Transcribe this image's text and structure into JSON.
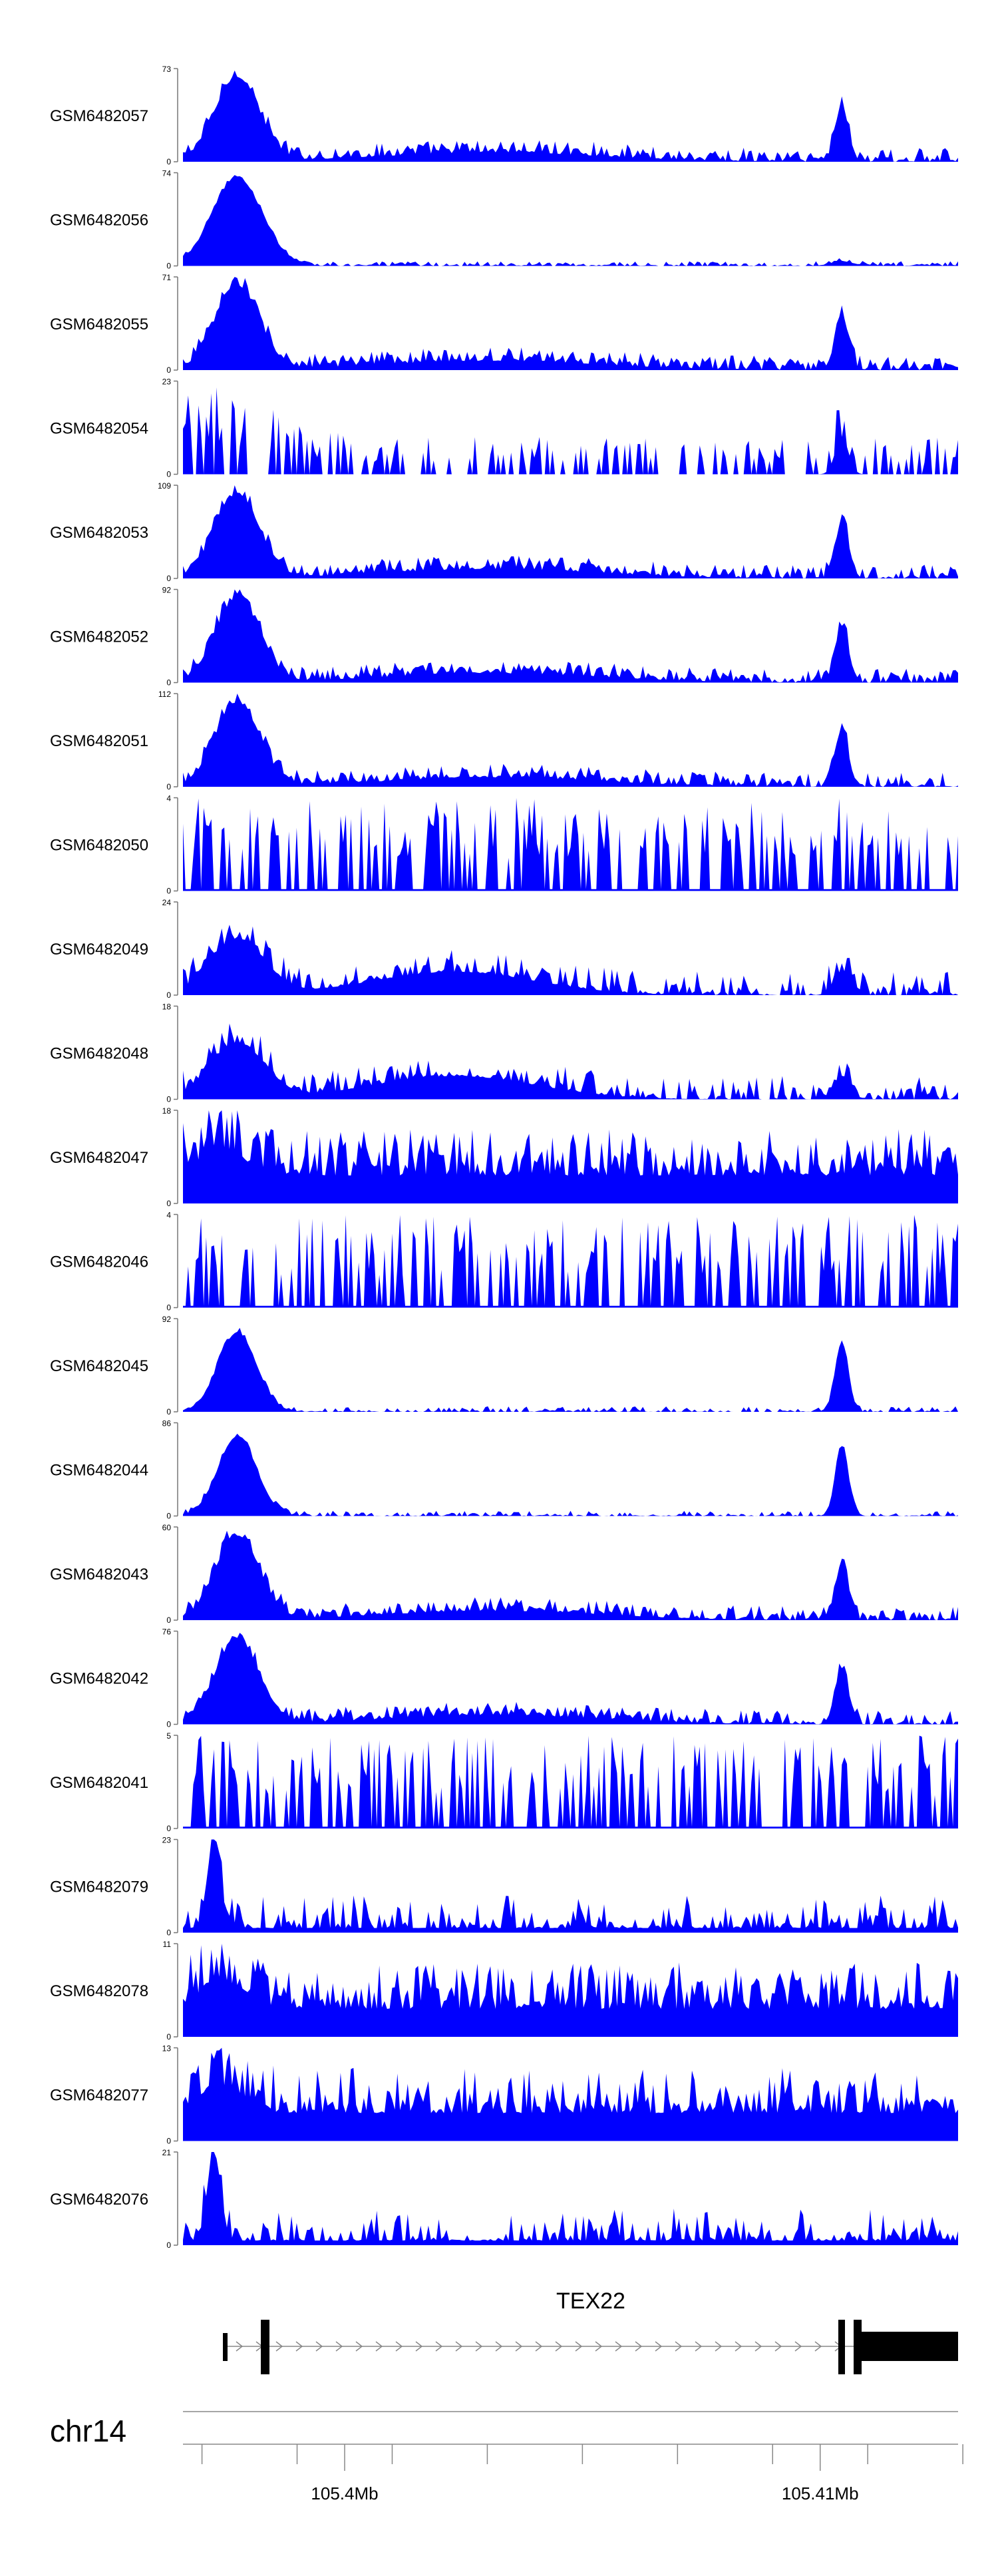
{
  "chart_data": {
    "type": "area",
    "chromosome": "chr14",
    "gene": {
      "name": "TEX22"
    },
    "x_axis": {
      "range_mb": [
        105.3966,
        105.4129
      ],
      "ticks_mb": [
        105.397,
        105.399,
        105.401,
        105.403,
        105.405,
        105.407,
        105.409,
        105.411,
        105.413
      ],
      "tick_labels": [
        {
          "mb": 105.4,
          "label": "105.4Mb"
        },
        {
          "mb": 105.41,
          "label": "105.41Mb"
        }
      ]
    },
    "tracks": [
      {
        "name": "GSM6482057",
        "max": 73,
        "label": "73",
        "shape": "strongA"
      },
      {
        "name": "GSM6482056",
        "max": 74,
        "label": "74",
        "shape": "earlyOnly"
      },
      {
        "name": "GSM6482055",
        "max": 71,
        "label": "71",
        "shape": "strongA"
      },
      {
        "name": "GSM6482054",
        "max": 23,
        "label": "23",
        "shape": "sparse"
      },
      {
        "name": "GSM6482053",
        "max": 109,
        "label": "109",
        "shape": "strongA"
      },
      {
        "name": "GSM6482052",
        "max": 92,
        "label": "92",
        "shape": "strongA"
      },
      {
        "name": "GSM6482051",
        "max": 112,
        "label": "112",
        "shape": "strongA"
      },
      {
        "name": "GSM6482050",
        "max": 4,
        "label": "4",
        "shape": "noise"
      },
      {
        "name": "GSM6482049",
        "max": 24,
        "label": "24",
        "shape": "moderate"
      },
      {
        "name": "GSM6482048",
        "max": 18,
        "label": "18",
        "shape": "moderate"
      },
      {
        "name": "GSM6482047",
        "max": 18,
        "label": "18",
        "shape": "dense"
      },
      {
        "name": "GSM6482046",
        "max": 4,
        "label": "4",
        "shape": "noise"
      },
      {
        "name": "GSM6482045",
        "max": 92,
        "label": "92",
        "shape": "clean"
      },
      {
        "name": "GSM6482044",
        "max": 86,
        "label": "86",
        "shape": "clean"
      },
      {
        "name": "GSM6482043",
        "max": 60,
        "label": "60",
        "shape": "strongA"
      },
      {
        "name": "GSM6482042",
        "max": 76,
        "label": "76",
        "shape": "strongA"
      },
      {
        "name": "GSM6482041",
        "max": 5,
        "label": "5",
        "shape": "noise"
      },
      {
        "name": "GSM6482079",
        "max": 23,
        "label": "23",
        "shape": "earlySpike"
      },
      {
        "name": "GSM6482078",
        "max": 11,
        "label": "11",
        "shape": "dense"
      },
      {
        "name": "GSM6482077",
        "max": 13,
        "label": "13",
        "shape": "dense"
      },
      {
        "name": "GSM6482076",
        "max": 21,
        "label": "21",
        "shape": "earlySpike"
      }
    ],
    "fill_color": "#0000ff",
    "gene_color": "#000000"
  }
}
